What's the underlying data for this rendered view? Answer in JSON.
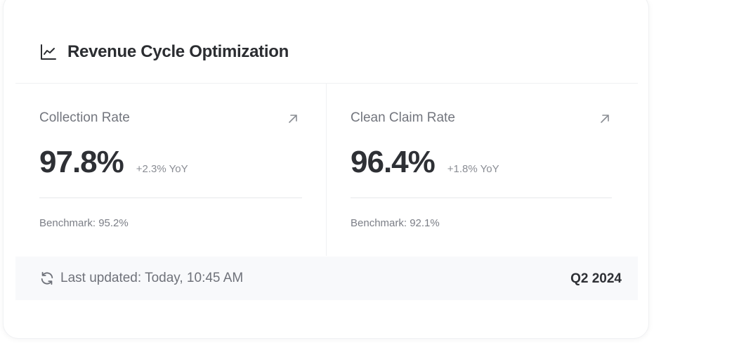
{
  "card": {
    "title": "Revenue Cycle Optimization",
    "title_icon": "line-chart-icon"
  },
  "metrics": [
    {
      "label": "Collection Rate",
      "value": "97.8%",
      "change": "+2.3% YoY",
      "benchmark": "Benchmark: 95.2%",
      "icon": "arrow-up-right-icon"
    },
    {
      "label": "Clean Claim Rate",
      "value": "96.4%",
      "change": "+1.8% YoY",
      "benchmark": "Benchmark: 92.1%",
      "icon": "arrow-up-right-icon"
    }
  ],
  "footer": {
    "updated": "Last updated: Today, 10:45 AM",
    "period": "Q2 2024",
    "icon": "refresh-icon"
  },
  "colors": {
    "text_primary": "#2e3035",
    "text_secondary": "#73767e",
    "divider": "#e7e8eb",
    "footer_bg": "#f8f9fb"
  }
}
